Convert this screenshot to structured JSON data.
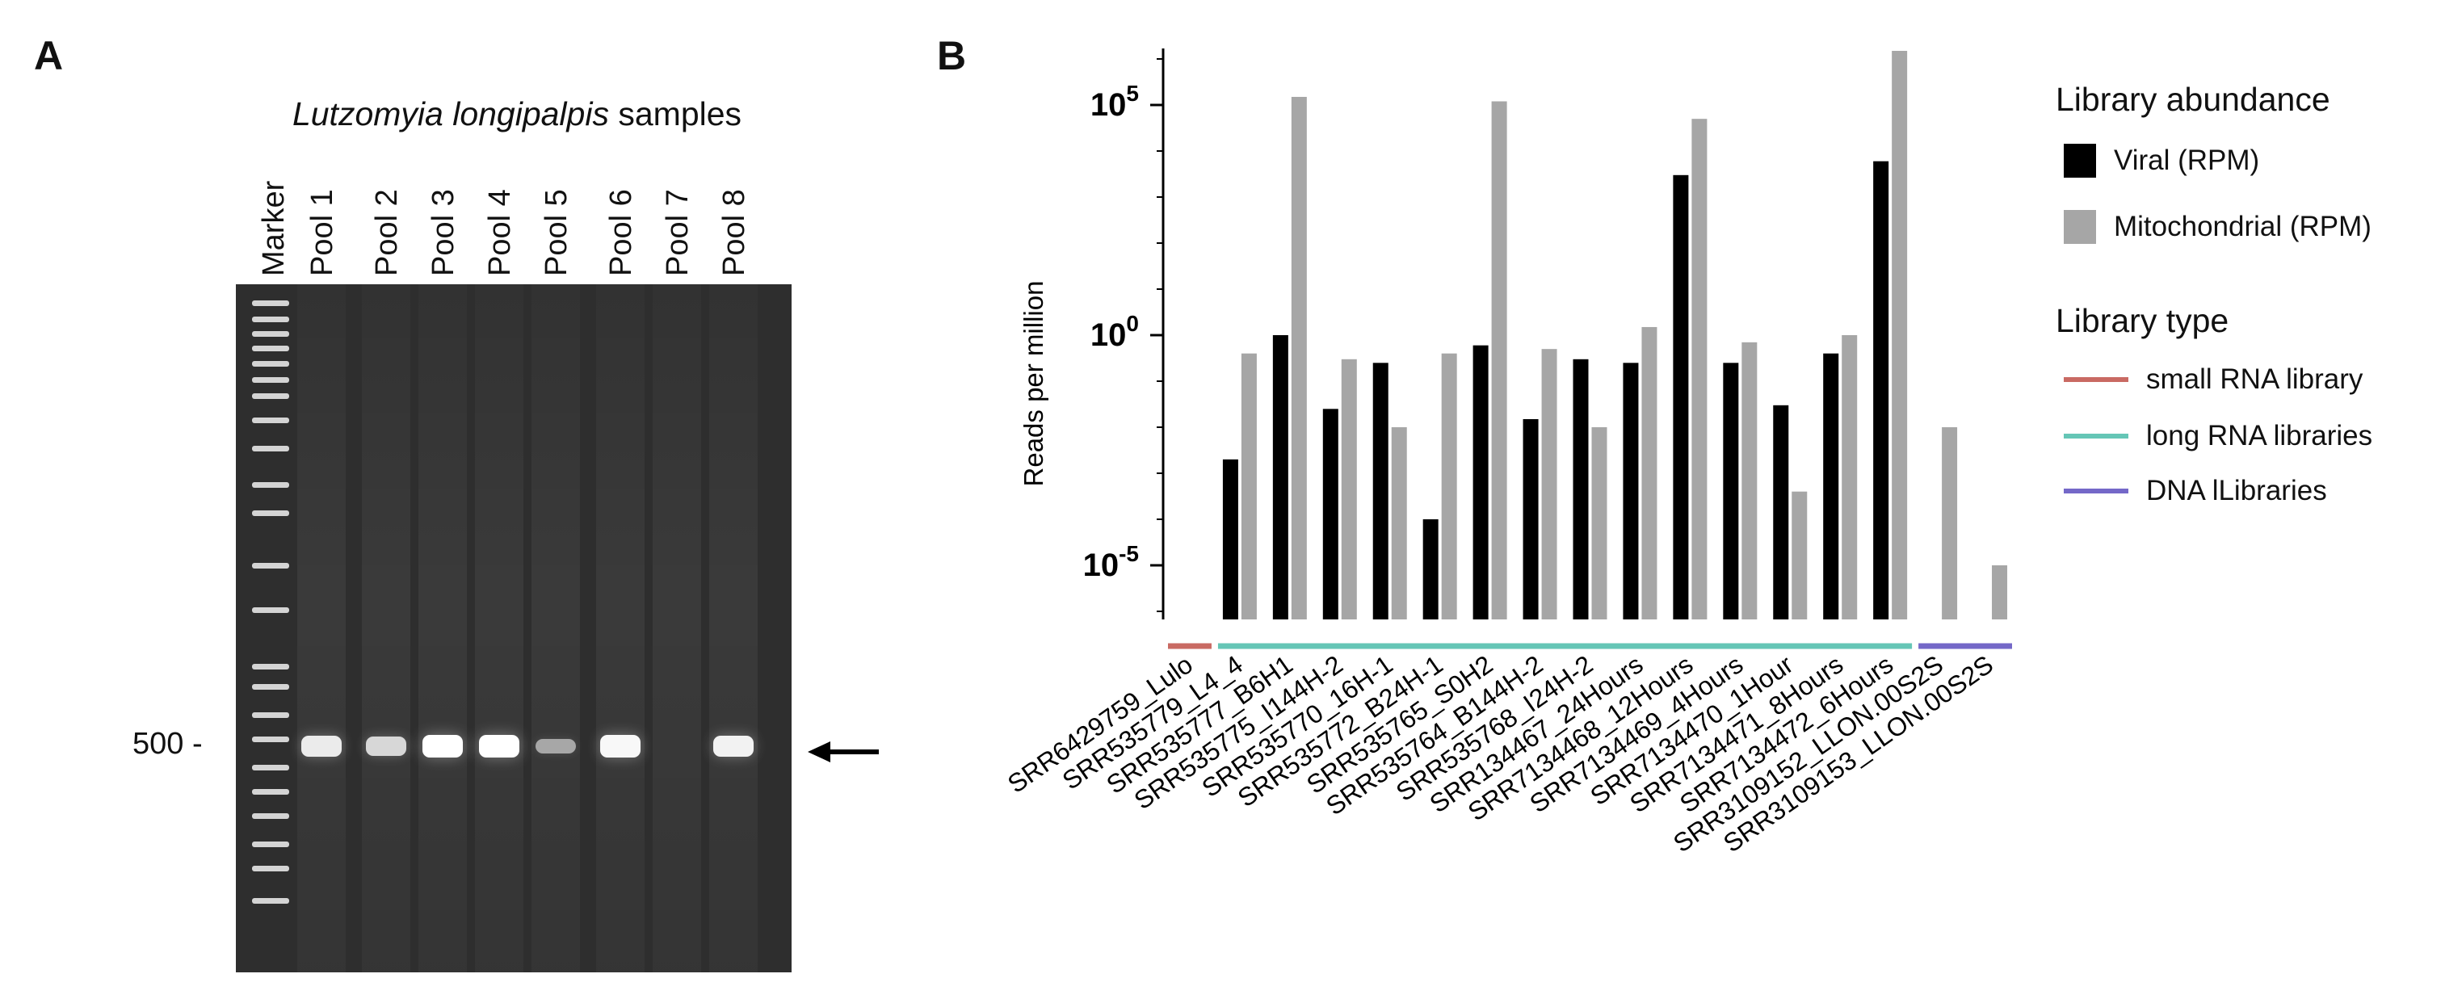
{
  "panel_a": {
    "letter": "A",
    "title_species": "Lutzomyia longipalpis",
    "title_suffix": "samples",
    "lanes": [
      "Marker",
      "Pool 1",
      "Pool 2",
      "Pool 3",
      "Pool 4",
      "Pool 5",
      "Pool 6",
      "Pool 7",
      "Pool 8"
    ],
    "marker_size_label": "500 -",
    "band_intensity": [
      0,
      0.85,
      0.7,
      1.0,
      1.0,
      0.35,
      0.95,
      0,
      0.9
    ]
  },
  "panel_b": {
    "letter": "B",
    "colors": {
      "viral": "#000000",
      "mitochondrial": "#a6a6a6",
      "small_rna": "#c96a63",
      "long_rna": "#65c6b6",
      "dna": "#7468c8"
    },
    "legend": {
      "abundance_title": "Library abundance",
      "viral_label": "Viral (RPM)",
      "mito_label": "Mitochondrial (RPM)",
      "type_title": "Library type",
      "small_rna_label": "small RNA library",
      "long_rna_label": "long RNA libraries",
      "dna_label": "DNA lLibraries"
    }
  },
  "chart_data": {
    "type": "bar",
    "title": "",
    "xlabel": "",
    "ylabel": "Reads per million",
    "yscale": "log",
    "ylim_exponent": [
      -6,
      6
    ],
    "yticks": [
      {
        "base": "10",
        "exp": "5",
        "value_exponent": 5
      },
      {
        "base": "10",
        "exp": "0",
        "value_exponent": 0
      },
      {
        "base": "10",
        "exp": "-5",
        "value_exponent": -5
      }
    ],
    "categories": [
      "SRR6429759_Lulo",
      "SRR535779_L4_4",
      "SRR535777_B6H1",
      "SRR535775_I144H-2",
      "SRR535770_16H-1",
      "SRR535772_B24H-1",
      "SRR535765_S0H2",
      "SRR535764_B144H-2",
      "SRR535768_I24H-2",
      "SRR134467_24Hours",
      "SRR7134468_12Hours",
      "SRR7134469_4Hours",
      "SRR7134470_1Hour",
      "SRR7134471_8Hours",
      "SRR7134472_6Hours",
      "SRR3109152_LLON.00S2S",
      "SRR3109153_LLON.00S2S"
    ],
    "series": [
      {
        "name": "Viral (RPM)",
        "values": [
          null,
          0.002,
          1.0,
          0.025,
          0.25,
          0.0001,
          0.6,
          0.015,
          0.3,
          0.25,
          3000,
          0.25,
          0.03,
          0.4,
          6000,
          null,
          null
        ]
      },
      {
        "name": "Mitochondrial (RPM)",
        "values": [
          null,
          0.4,
          150000,
          0.3,
          0.01,
          0.4,
          120000,
          0.5,
          0.01,
          1.5,
          50000,
          0.7,
          0.0004,
          1.0,
          1500000,
          0.01,
          1e-05
        ]
      }
    ],
    "library_groups": [
      {
        "name": "small RNA library",
        "from": 0,
        "to": 0
      },
      {
        "name": "long RNA libraries",
        "from": 1,
        "to": 14
      },
      {
        "name": "DNA lLibraries",
        "from": 15,
        "to": 16
      }
    ]
  }
}
